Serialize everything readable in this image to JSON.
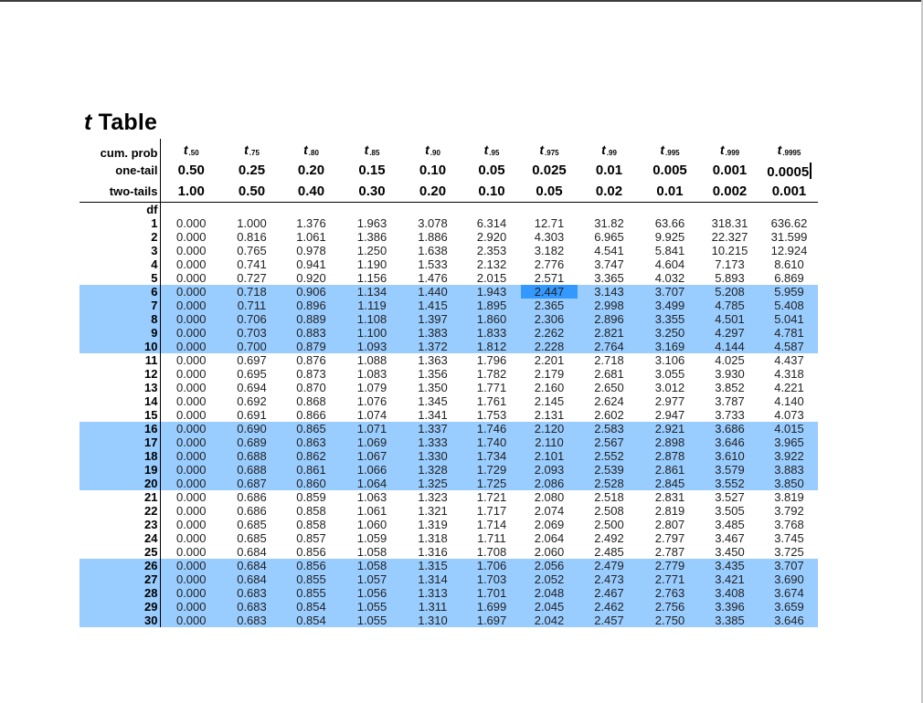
{
  "title": {
    "t": "t",
    "rest": " Table"
  },
  "header": {
    "cum_prob_label": "cum. prob",
    "one_tail_label": "one-tail",
    "two_tails_label": "two-tails",
    "df_label": "df",
    "cum_prob": [
      ".50",
      ".75",
      ".80",
      ".85",
      ".90",
      ".95",
      ".975",
      ".99",
      ".995",
      ".999",
      ".9995"
    ],
    "t_symbol": "t",
    "one_tail": [
      "0.50",
      "0.25",
      "0.20",
      "0.15",
      "0.10",
      "0.05",
      "0.025",
      "0.01",
      "0.005",
      "0.001",
      "0.0005"
    ],
    "two_tails": [
      "1.00",
      "0.50",
      "0.40",
      "0.30",
      "0.20",
      "0.10",
      "0.05",
      "0.02",
      "0.01",
      "0.002",
      "0.001"
    ]
  },
  "highlight_color": "#99ccff",
  "selected_cell_color": "#3399ff",
  "highlighted_df_groups": [
    "6-10",
    "16-20",
    "26-30"
  ],
  "selected_cell": {
    "df": "6",
    "column": "0.025"
  },
  "rows": [
    {
      "df": "1",
      "v": [
        "0.000",
        "1.000",
        "1.376",
        "1.963",
        "3.078",
        "6.314",
        "12.71",
        "31.82",
        "63.66",
        "318.31",
        "636.62"
      ]
    },
    {
      "df": "2",
      "v": [
        "0.000",
        "0.816",
        "1.061",
        "1.386",
        "1.886",
        "2.920",
        "4.303",
        "6.965",
        "9.925",
        "22.327",
        "31.599"
      ]
    },
    {
      "df": "3",
      "v": [
        "0.000",
        "0.765",
        "0.978",
        "1.250",
        "1.638",
        "2.353",
        "3.182",
        "4.541",
        "5.841",
        "10.215",
        "12.924"
      ]
    },
    {
      "df": "4",
      "v": [
        "0.000",
        "0.741",
        "0.941",
        "1.190",
        "1.533",
        "2.132",
        "2.776",
        "3.747",
        "4.604",
        "7.173",
        "8.610"
      ]
    },
    {
      "df": "5",
      "v": [
        "0.000",
        "0.727",
        "0.920",
        "1.156",
        "1.476",
        "2.015",
        "2.571",
        "3.365",
        "4.032",
        "5.893",
        "6.869"
      ]
    },
    {
      "df": "6",
      "v": [
        "0.000",
        "0.718",
        "0.906",
        "1.134",
        "1.440",
        "1.943",
        "2.447",
        "3.143",
        "3.707",
        "5.208",
        "5.959"
      ]
    },
    {
      "df": "7",
      "v": [
        "0.000",
        "0.711",
        "0.896",
        "1.119",
        "1.415",
        "1.895",
        "2.365",
        "2.998",
        "3.499",
        "4.785",
        "5.408"
      ]
    },
    {
      "df": "8",
      "v": [
        "0.000",
        "0.706",
        "0.889",
        "1.108",
        "1.397",
        "1.860",
        "2.306",
        "2.896",
        "3.355",
        "4.501",
        "5.041"
      ]
    },
    {
      "df": "9",
      "v": [
        "0.000",
        "0.703",
        "0.883",
        "1.100",
        "1.383",
        "1.833",
        "2.262",
        "2.821",
        "3.250",
        "4.297",
        "4.781"
      ]
    },
    {
      "df": "10",
      "v": [
        "0.000",
        "0.700",
        "0.879",
        "1.093",
        "1.372",
        "1.812",
        "2.228",
        "2.764",
        "3.169",
        "4.144",
        "4.587"
      ]
    },
    {
      "df": "11",
      "v": [
        "0.000",
        "0.697",
        "0.876",
        "1.088",
        "1.363",
        "1.796",
        "2.201",
        "2.718",
        "3.106",
        "4.025",
        "4.437"
      ]
    },
    {
      "df": "12",
      "v": [
        "0.000",
        "0.695",
        "0.873",
        "1.083",
        "1.356",
        "1.782",
        "2.179",
        "2.681",
        "3.055",
        "3.930",
        "4.318"
      ]
    },
    {
      "df": "13",
      "v": [
        "0.000",
        "0.694",
        "0.870",
        "1.079",
        "1.350",
        "1.771",
        "2.160",
        "2.650",
        "3.012",
        "3.852",
        "4.221"
      ]
    },
    {
      "df": "14",
      "v": [
        "0.000",
        "0.692",
        "0.868",
        "1.076",
        "1.345",
        "1.761",
        "2.145",
        "2.624",
        "2.977",
        "3.787",
        "4.140"
      ]
    },
    {
      "df": "15",
      "v": [
        "0.000",
        "0.691",
        "0.866",
        "1.074",
        "1.341",
        "1.753",
        "2.131",
        "2.602",
        "2.947",
        "3.733",
        "4.073"
      ]
    },
    {
      "df": "16",
      "v": [
        "0.000",
        "0.690",
        "0.865",
        "1.071",
        "1.337",
        "1.746",
        "2.120",
        "2.583",
        "2.921",
        "3.686",
        "4.015"
      ]
    },
    {
      "df": "17",
      "v": [
        "0.000",
        "0.689",
        "0.863",
        "1.069",
        "1.333",
        "1.740",
        "2.110",
        "2.567",
        "2.898",
        "3.646",
        "3.965"
      ]
    },
    {
      "df": "18",
      "v": [
        "0.000",
        "0.688",
        "0.862",
        "1.067",
        "1.330",
        "1.734",
        "2.101",
        "2.552",
        "2.878",
        "3.610",
        "3.922"
      ]
    },
    {
      "df": "19",
      "v": [
        "0.000",
        "0.688",
        "0.861",
        "1.066",
        "1.328",
        "1.729",
        "2.093",
        "2.539",
        "2.861",
        "3.579",
        "3.883"
      ]
    },
    {
      "df": "20",
      "v": [
        "0.000",
        "0.687",
        "0.860",
        "1.064",
        "1.325",
        "1.725",
        "2.086",
        "2.528",
        "2.845",
        "3.552",
        "3.850"
      ]
    },
    {
      "df": "21",
      "v": [
        "0.000",
        "0.686",
        "0.859",
        "1.063",
        "1.323",
        "1.721",
        "2.080",
        "2.518",
        "2.831",
        "3.527",
        "3.819"
      ]
    },
    {
      "df": "22",
      "v": [
        "0.000",
        "0.686",
        "0.858",
        "1.061",
        "1.321",
        "1.717",
        "2.074",
        "2.508",
        "2.819",
        "3.505",
        "3.792"
      ]
    },
    {
      "df": "23",
      "v": [
        "0.000",
        "0.685",
        "0.858",
        "1.060",
        "1.319",
        "1.714",
        "2.069",
        "2.500",
        "2.807",
        "3.485",
        "3.768"
      ]
    },
    {
      "df": "24",
      "v": [
        "0.000",
        "0.685",
        "0.857",
        "1.059",
        "1.318",
        "1.711",
        "2.064",
        "2.492",
        "2.797",
        "3.467",
        "3.745"
      ]
    },
    {
      "df": "25",
      "v": [
        "0.000",
        "0.684",
        "0.856",
        "1.058",
        "1.316",
        "1.708",
        "2.060",
        "2.485",
        "2.787",
        "3.450",
        "3.725"
      ]
    },
    {
      "df": "26",
      "v": [
        "0.000",
        "0.684",
        "0.856",
        "1.058",
        "1.315",
        "1.706",
        "2.056",
        "2.479",
        "2.779",
        "3.435",
        "3.707"
      ]
    },
    {
      "df": "27",
      "v": [
        "0.000",
        "0.684",
        "0.855",
        "1.057",
        "1.314",
        "1.703",
        "2.052",
        "2.473",
        "2.771",
        "3.421",
        "3.690"
      ]
    },
    {
      "df": "28",
      "v": [
        "0.000",
        "0.683",
        "0.855",
        "1.056",
        "1.313",
        "1.701",
        "2.048",
        "2.467",
        "2.763",
        "3.408",
        "3.674"
      ]
    },
    {
      "df": "29",
      "v": [
        "0.000",
        "0.683",
        "0.854",
        "1.055",
        "1.311",
        "1.699",
        "2.045",
        "2.462",
        "2.756",
        "3.396",
        "3.659"
      ]
    },
    {
      "df": "30",
      "v": [
        "0.000",
        "0.683",
        "0.854",
        "1.055",
        "1.310",
        "1.697",
        "2.042",
        "2.457",
        "2.750",
        "3.385",
        "3.646"
      ]
    }
  ]
}
